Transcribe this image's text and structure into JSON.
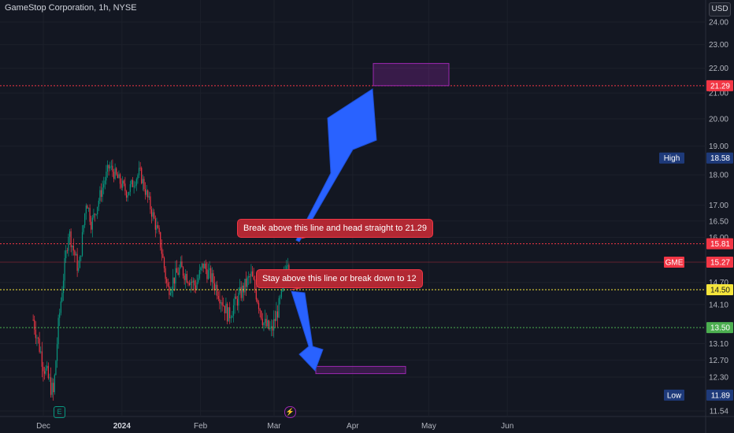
{
  "header": {
    "symbol_title": "GameStop Corporation, 1h, NYSE",
    "currency": "USD"
  },
  "events": [
    {
      "name": "earnings-icon",
      "glyph": "E"
    },
    {
      "name": "split-icon",
      "glyph": "⚡"
    }
  ],
  "chart_data": {
    "type": "candlestick",
    "title": "GameStop Corporation, 1h, NYSE",
    "ticker": "GME",
    "price_axis": {
      "ticks": [
        "24.00",
        "23.00",
        "22.00",
        "21.00",
        "20.00",
        "19.00",
        "18.00",
        "17.00",
        "16.50",
        "16.00",
        "14.70",
        "14.10",
        "13.10",
        "12.70",
        "12.30",
        "11.54"
      ],
      "scale": "log",
      "range": [
        11.3,
        25.0
      ]
    },
    "time_axis": {
      "ticks": [
        "Dec",
        "2024",
        "Feb",
        "Mar",
        "Apr",
        "May",
        "Jun"
      ]
    },
    "series": [
      {
        "x": [
          "Nov 27",
          "Dec 1",
          "Dec 5",
          "Dec 7",
          "Dec 11",
          "Dec 15",
          "Dec 18",
          "Dec 20",
          "Dec 27",
          "Jan 3",
          "Jan 8",
          "Jan 12",
          "Jan 16",
          "Jan 19",
          "Jan 24",
          "Jan 30",
          "Feb 2",
          "Feb 7",
          "Feb 12",
          "Feb 16",
          "Feb 21",
          "Feb 26",
          "Feb 29",
          "Mar 4",
          "Mar 6",
          "Mar 7"
        ],
        "close": [
          13.7,
          12.6,
          11.9,
          13.6,
          16.2,
          15.0,
          17.2,
          16.4,
          18.3,
          17.4,
          18.1,
          17.0,
          15.9,
          14.5,
          15.1,
          14.6,
          15.2,
          14.6,
          13.8,
          14.3,
          14.9,
          13.6,
          13.4,
          14.3,
          15.4,
          15.27
        ]
      }
    ],
    "price_labels": [
      {
        "name": "high",
        "label": "High",
        "value": "18.58",
        "color": "#1e3a7a"
      },
      {
        "name": "target-line",
        "value": "21.29",
        "color": "#f23645"
      },
      {
        "name": "resistance-line",
        "value": "15.81",
        "color": "#f23645"
      },
      {
        "name": "current",
        "label": "GME",
        "value": "15.27",
        "color": "#f23645"
      },
      {
        "name": "support-line",
        "value": "14.50",
        "color": "#f5e53b"
      },
      {
        "name": "lower-line",
        "value": "13.50",
        "color": "#4caf50"
      },
      {
        "name": "low",
        "label": "Low",
        "value": "11.89",
        "color": "#1e3a7a"
      }
    ],
    "annotations": [
      {
        "text": "Break above this line and head straight to 21.29"
      },
      {
        "text": "Stay above this line or break down to 12"
      }
    ],
    "colors": {
      "up": "#089981",
      "down": "#f23645",
      "arrow": "#2962ff",
      "target_box": "#9c27b0"
    }
  }
}
